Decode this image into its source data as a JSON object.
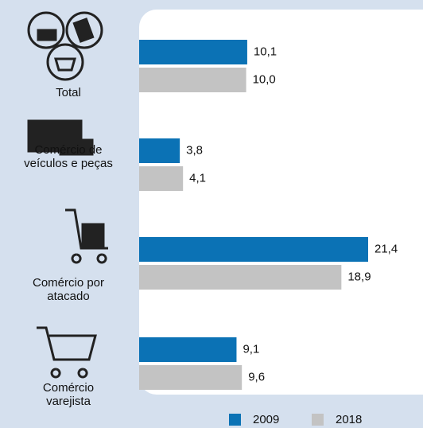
{
  "chart_data": {
    "type": "bar",
    "orientation": "horizontal",
    "categories": [
      "Total",
      "Comércio de\nveículos e peças",
      "Comércio por\natacado",
      "Comércio\nvarejista"
    ],
    "series": [
      {
        "name": "2009",
        "color": "#0b72b5",
        "values": [
          10.1,
          3.8,
          21.4,
          9.1
        ],
        "value_labels": [
          "10,1",
          "3,8",
          "21,4",
          "9,1"
        ]
      },
      {
        "name": "2018",
        "color": "#c3c3c3",
        "values": [
          10.0,
          4.1,
          18.9,
          9.6
        ],
        "value_labels": [
          "10,0",
          "4,1",
          "18,9",
          "9,6"
        ]
      }
    ]
  }
}
